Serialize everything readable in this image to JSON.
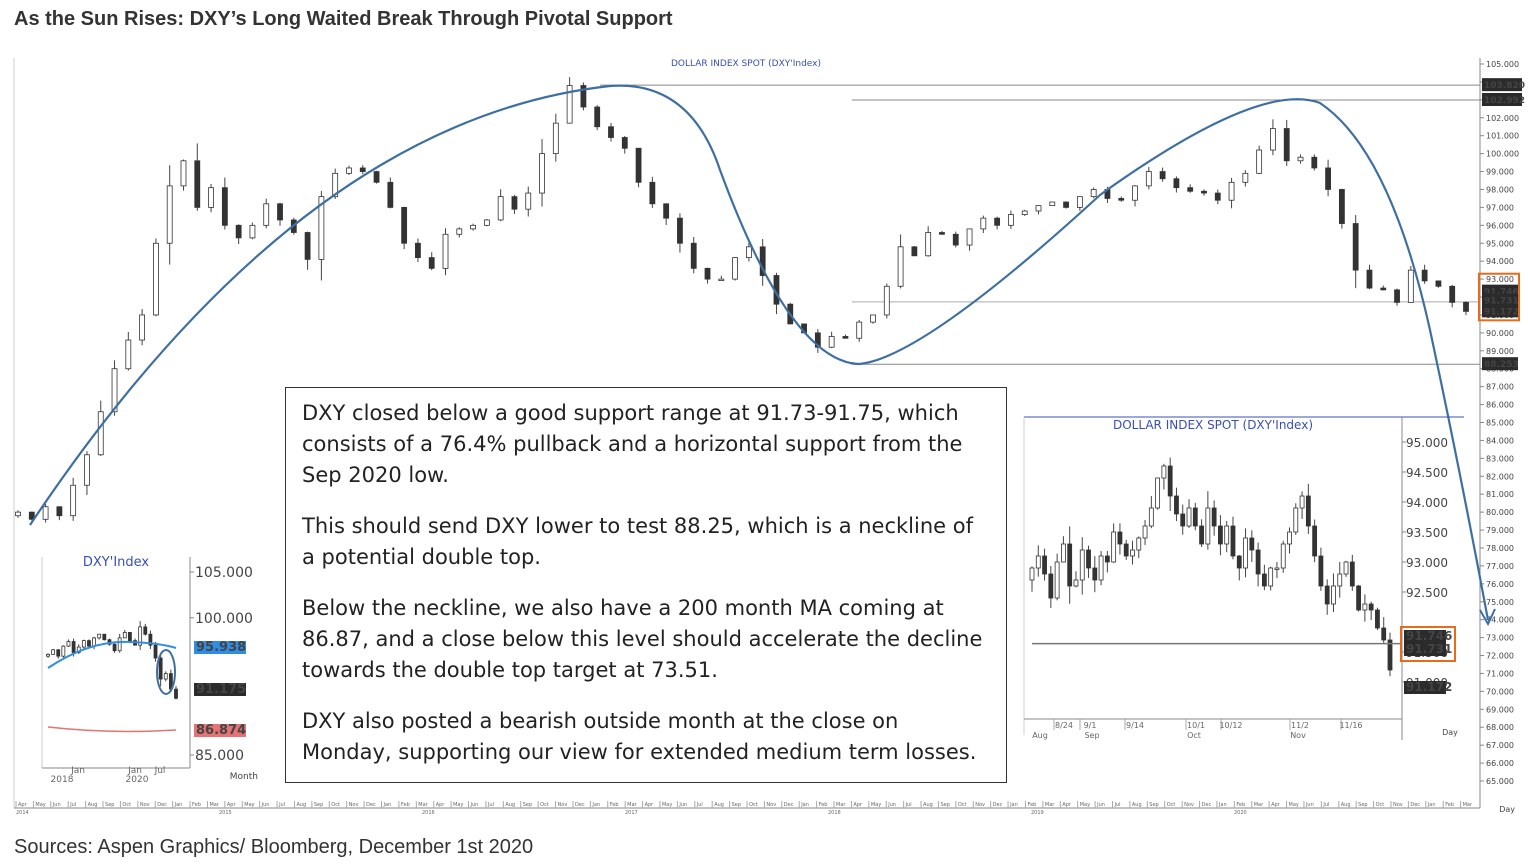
{
  "headline": "As the Sun Rises: DXY’s Long Waited Break Through Pivotal Support",
  "sources": "Sources: Aspen Graphics/ Bloomberg, December 1st 2020",
  "colors": {
    "curve": "#3e6fa3",
    "up_candle": "#ffffff",
    "down_candle": "#333333",
    "ma_blue": "#2f8de4",
    "ma_red": "#e57373",
    "badge_dark": "#2b2b2b",
    "highlight": "#e46c1a",
    "title_blue": "#3a4fb5"
  },
  "callout": {
    "paragraphs": [
      "DXY closed below a good support range at 91.73-91.75, which consists of a 76.4% pullback and a horizontal support from the Sep 2020 low.",
      "This should send DXY lower to test 88.25, which is a neckline of a potential double top.",
      "Below the neckline, we also have a 200 month MA coming at 86.87, and a close below this level should accelerate the decline towards the double top target at 73.51.",
      "DXY also posted a bearish outside month at the close on Monday, supporting our view for extended medium term losses."
    ]
  },
  "chart_data": [
    {
      "type": "candlestick",
      "title": "DOLLAR INDEX SPOT (DXY'Index)",
      "period_label": "Day",
      "ylim": [
        65,
        105
      ],
      "y_ticks": [
        "105.000",
        "104.000",
        "103.000",
        "102.000",
        "101.000",
        "100.000",
        "99.000",
        "98.000",
        "97.000",
        "96.000",
        "95.000",
        "94.000",
        "93.000",
        "92.000",
        "91.000",
        "90.000",
        "89.000",
        "88.000",
        "87.000",
        "86.000",
        "85.000",
        "84.000",
        "83.000",
        "82.000",
        "81.000",
        "80.000",
        "79.000",
        "78.000",
        "77.000",
        "76.000",
        "75.000",
        "74.000",
        "73.000",
        "72.000",
        "71.000",
        "70.000",
        "69.000",
        "68.000",
        "67.000",
        "66.000",
        "65.000"
      ],
      "year_labels": [
        "2014",
        "2015",
        "2016",
        "2017",
        "2018",
        "2019",
        "2020"
      ],
      "month_labels": [
        "Apr",
        "May",
        "Jun",
        "Jul",
        "Aug",
        "Sep",
        "Oct",
        "Nov",
        "Dec",
        "Jan",
        "Feb",
        "Mar"
      ],
      "price_labels": {
        "peak_2017": "103.820",
        "peak_2020": "102.992",
        "neckline": "88.253",
        "support_a": "91.746",
        "support_b": "91.731",
        "last": "91.172"
      },
      "levels": {
        "peak_2017": 103.82,
        "peak_2020": 102.992,
        "neckline": 88.253,
        "support": 91.73
      },
      "target": 73.51,
      "closes": [
        80.0,
        79.6,
        80.3,
        79.8,
        81.5,
        83.2,
        85.6,
        88.0,
        89.6,
        91.0,
        95.0,
        98.2,
        99.6,
        97.0,
        98.1,
        96.0,
        95.3,
        96.0,
        97.2,
        96.3,
        95.6,
        94.1,
        97.6,
        98.9,
        99.2,
        99.0,
        98.4,
        97.0,
        95.0,
        94.2,
        93.6,
        95.5,
        95.8,
        96.0,
        96.3,
        97.6,
        96.9,
        97.8,
        100.0,
        101.7,
        103.8,
        102.6,
        101.5,
        100.9,
        100.3,
        98.4,
        97.2,
        96.4,
        95.0,
        93.6,
        93.0,
        93.0,
        94.2,
        94.8,
        93.2,
        91.6,
        90.5,
        90.0,
        89.2,
        89.8,
        89.7,
        90.6,
        91.0,
        92.6,
        94.8,
        94.3,
        95.6,
        95.5,
        94.9,
        95.8,
        96.4,
        96.0,
        96.6,
        96.8,
        97.1,
        97.3,
        97.0,
        97.6,
        98.0,
        97.5,
        97.4,
        98.2,
        99.0,
        98.6,
        98.1,
        97.9,
        97.8,
        97.4,
        98.4,
        98.9,
        100.2,
        101.4,
        99.6,
        99.8,
        99.2,
        98.0,
        96.1,
        93.5,
        92.5,
        92.4,
        91.7,
        93.5,
        92.9,
        92.6,
        91.7,
        91.2
      ]
    },
    {
      "type": "candlestick",
      "title": "DXY'Index",
      "period_label": "Month",
      "ylim": [
        85,
        105
      ],
      "y_ticks": [
        "105.000",
        "100.000",
        "85.000"
      ],
      "x_labels": [
        "2018",
        "Jan",
        "Jan",
        "Jul",
        "2020"
      ],
      "price_labels": {
        "ma_50": "95.938",
        "last": "91.175",
        "ma_200": "86.874"
      },
      "levels": {
        "ma_50": 95.938,
        "last": 91.175,
        "ma_200": 86.874
      },
      "closes": [
        96.0,
        96.5,
        95.8,
        96.9,
        97.4,
        96.2,
        96.8,
        97.5,
        96.9,
        97.8,
        98.2,
        97.6,
        97.1,
        96.4,
        97.8,
        98.4,
        97.5,
        97.0,
        99.0,
        98.2,
        97.0,
        95.6,
        93.3,
        93.9,
        92.2,
        91.2
      ]
    },
    {
      "type": "candlestick",
      "title": "DOLLAR INDEX SPOT (DXY'Index)",
      "period_label": "Day",
      "ylim": [
        90.5,
        95.2
      ],
      "y_ticks": [
        "95.000",
        "94.500",
        "94.000",
        "93.500",
        "93.000",
        "92.500",
        "91.500",
        "91.000"
      ],
      "x_labels": [
        "8/24",
        "9/1",
        "9/14",
        "10/1",
        "10/12",
        "11/2",
        "11/16"
      ],
      "x_month_labels": [
        "Aug",
        "Sep",
        "Oct",
        "Nov"
      ],
      "price_labels": {
        "support_a": "91.746",
        "support_b": "91.731",
        "last": "91.172"
      },
      "levels": {
        "support": 91.74
      },
      "closes": [
        92.9,
        93.1,
        92.8,
        92.4,
        93.0,
        93.3,
        92.6,
        92.7,
        93.2,
        92.9,
        92.7,
        93.1,
        93.0,
        93.5,
        93.3,
        93.1,
        93.2,
        93.4,
        93.6,
        93.9,
        94.4,
        94.6,
        94.1,
        93.8,
        93.6,
        93.9,
        93.6,
        93.3,
        93.9,
        93.6,
        93.3,
        93.6,
        93.1,
        92.9,
        93.4,
        93.2,
        92.8,
        92.6,
        92.9,
        92.9,
        93.3,
        93.5,
        93.9,
        94.1,
        93.6,
        93.1,
        92.6,
        92.3,
        92.6,
        92.8,
        93.0,
        92.6,
        92.2,
        92.3,
        92.2,
        91.9,
        91.7,
        91.2
      ]
    }
  ]
}
